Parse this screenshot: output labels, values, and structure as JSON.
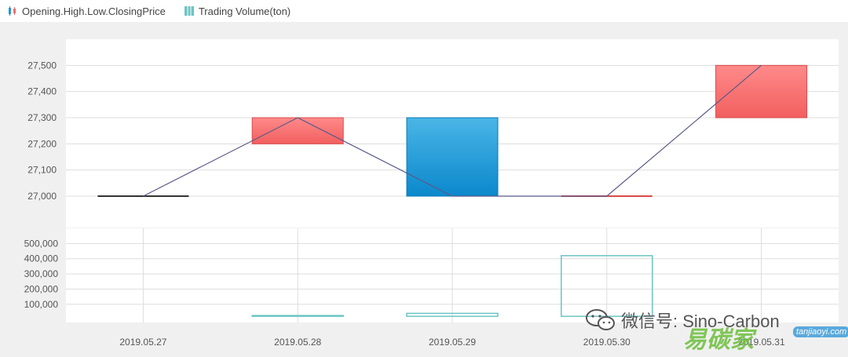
{
  "legend": {
    "candle_label": "Opening.High.Low.ClosingPrice",
    "volume_label": "Trading Volume(ton)"
  },
  "colors": {
    "up": "#f26b6b",
    "down": "#1e98d8",
    "line": "#5a5a8a",
    "volume": "#6cc4c4",
    "grid": "#dddddd"
  },
  "chart_data": [
    {
      "type": "candlestick",
      "categories": [
        "2019.05.27",
        "2019.05.28",
        "2019.05.29",
        "2019.05.30",
        "2019.05.31"
      ],
      "series": [
        {
          "name": "Opening.High.Low.ClosingPrice",
          "open": [
            27000,
            27200,
            27300,
            27000,
            27300
          ],
          "high": [
            27000,
            27300,
            27300,
            27000,
            27500
          ],
          "low": [
            27000,
            27200,
            27000,
            27000,
            27300
          ],
          "close": [
            27000,
            27300,
            27000,
            27000,
            27500
          ]
        }
      ],
      "y_ticks": [
        "27,000",
        "27,100",
        "27,200",
        "27,300",
        "27,400",
        "27,500"
      ],
      "y_tick_values": [
        27000,
        27100,
        27200,
        27300,
        27400,
        27500
      ],
      "ylim": [
        26880,
        27600
      ]
    },
    {
      "type": "bar",
      "categories": [
        "2019.05.27",
        "2019.05.28",
        "2019.05.29",
        "2019.05.30",
        "2019.05.31"
      ],
      "series": [
        {
          "name": "Trading Volume(ton)",
          "values": [
            0,
            5000,
            40000,
            420000,
            0
          ]
        }
      ],
      "y_ticks": [
        "100,000",
        "200,000",
        "300,000",
        "400,000",
        "500,000"
      ],
      "y_tick_values": [
        100000,
        200000,
        300000,
        400000,
        500000
      ],
      "ylim": [
        -20000,
        600000
      ]
    }
  ],
  "watermark": {
    "text": "微信号: Sino-Carbon",
    "brand": "易碳家",
    "domain": "tanjiaoyi.com"
  }
}
